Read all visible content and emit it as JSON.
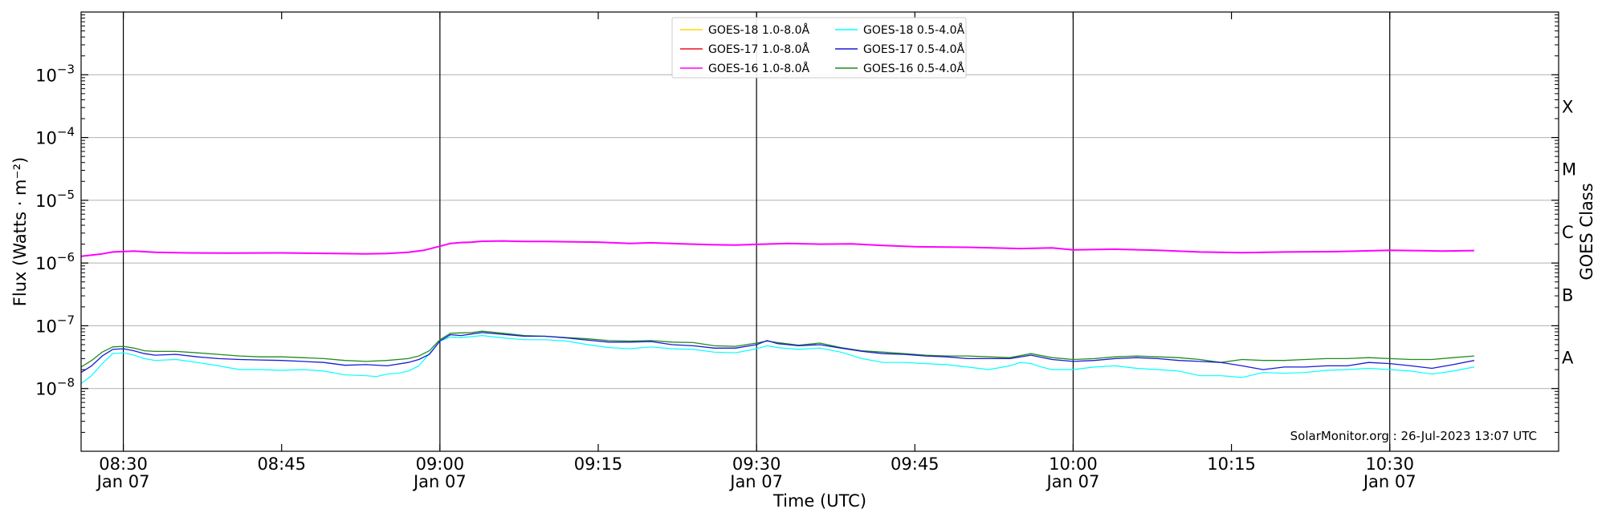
{
  "chart_data": {
    "type": "line",
    "title": "",
    "xlabel": "Time (UTC)",
    "ylabel": "Flux (Watts · m⁻²)",
    "ylabel_right": "GOES Class",
    "x_range": [
      "08:26",
      "10:46"
    ],
    "ylim": [
      1e-09,
      0.01
    ],
    "y_scale": "log",
    "grid": "horizontal",
    "legend_position": "top-center",
    "x_ticks": [
      {
        "t": 30,
        "label": "08:30",
        "date": "Jan 07"
      },
      {
        "t": 45,
        "label": "08:45",
        "date": ""
      },
      {
        "t": 60,
        "label": "09:00",
        "date": "Jan 07"
      },
      {
        "t": 75,
        "label": "09:15",
        "date": ""
      },
      {
        "t": 90,
        "label": "09:30",
        "date": "Jan 07"
      },
      {
        "t": 105,
        "label": "09:45",
        "date": ""
      },
      {
        "t": 120,
        "label": "10:00",
        "date": "Jan 07"
      },
      {
        "t": 135,
        "label": "10:15",
        "date": ""
      },
      {
        "t": 150,
        "label": "10:30",
        "date": "Jan 07"
      }
    ],
    "y_ticks": [
      {
        "value": 1e-08,
        "base": "10",
        "exp": "−8"
      },
      {
        "value": 1e-07,
        "base": "10",
        "exp": "−7"
      },
      {
        "value": 1e-06,
        "base": "10",
        "exp": "−6"
      },
      {
        "value": 1e-05,
        "base": "10",
        "exp": "−5"
      },
      {
        "value": 0.0001,
        "base": "10",
        "exp": "−4"
      },
      {
        "value": 0.001,
        "base": "10",
        "exp": "−3"
      }
    ],
    "goes_classes": [
      {
        "label": "A",
        "value": 3.16e-08
      },
      {
        "label": "B",
        "value": 3.16e-07
      },
      {
        "label": "C",
        "value": 3.16e-06
      },
      {
        "label": "M",
        "value": 3.16e-05
      },
      {
        "label": "X",
        "value": 0.000316
      }
    ],
    "vlines": [
      30,
      60,
      90,
      120,
      150
    ],
    "watermark": "SolarMonitor.org : 26-Jul-2023 13:07 UTC",
    "series": [
      {
        "name": "GOES-18 1.0-8.0Å",
        "color": "#ffd700",
        "width": 1.2,
        "x": [],
        "y": []
      },
      {
        "name": "GOES-17 1.0-8.0Å",
        "color": "#e8141e",
        "width": 1.2,
        "x": [],
        "y": []
      },
      {
        "name": "GOES-16 1.0-8.0Å",
        "color": "#ff00ff",
        "width": 2,
        "x": [
          26,
          28,
          29,
          31,
          33,
          36,
          40,
          45,
          50,
          53,
          55,
          57,
          58.5,
          60,
          61,
          62,
          63,
          64,
          66,
          68,
          70,
          72,
          75,
          78,
          80,
          83,
          86,
          88,
          90,
          93,
          96,
          99,
          102,
          105,
          110,
          115,
          118,
          120,
          124,
          128,
          132,
          136,
          140,
          145,
          150,
          155,
          158
        ],
        "y": [
          1.28e-06,
          1.4e-06,
          1.5e-06,
          1.55e-06,
          1.48e-06,
          1.45e-06,
          1.44e-06,
          1.45e-06,
          1.42e-06,
          1.4e-06,
          1.42e-06,
          1.48e-06,
          1.6e-06,
          1.85e-06,
          2.05e-06,
          2.12e-06,
          2.15e-06,
          2.22e-06,
          2.25e-06,
          2.2e-06,
          2.2e-06,
          2.18e-06,
          2.15e-06,
          2.05e-06,
          2.1e-06,
          2.02e-06,
          1.95e-06,
          1.93e-06,
          1.98e-06,
          2.05e-06,
          2e-06,
          2.02e-06,
          1.9e-06,
          1.82e-06,
          1.78e-06,
          1.7e-06,
          1.74e-06,
          1.62e-06,
          1.66e-06,
          1.6e-06,
          1.5e-06,
          1.46e-06,
          1.5e-06,
          1.52e-06,
          1.6e-06,
          1.55e-06,
          1.58e-06
        ]
      },
      {
        "name": "GOES-18 0.5-4.0Å",
        "color": "#00ffff",
        "width": 1.2,
        "x": [
          26,
          27,
          28,
          29,
          30,
          31,
          32,
          33,
          35,
          37,
          39,
          41,
          43,
          45,
          47,
          49,
          51,
          53,
          54,
          55,
          56,
          57,
          58,
          59,
          60,
          61,
          62,
          63,
          64,
          66,
          68,
          70,
          72,
          74,
          76,
          78,
          80,
          82,
          84,
          86,
          88,
          90,
          91,
          92,
          94,
          96,
          98,
          100,
          102,
          104,
          106,
          108,
          110,
          112,
          114,
          115,
          116,
          117,
          118,
          119,
          120,
          121,
          122,
          124,
          126,
          128,
          130,
          132,
          134,
          136,
          138,
          140,
          142,
          144,
          146,
          148,
          150,
          152,
          154,
          156,
          158
        ],
        "y": [
          1.2e-08,
          1.6e-08,
          2.5e-08,
          3.6e-08,
          3.7e-08,
          3.4e-08,
          3e-08,
          2.8e-08,
          2.9e-08,
          2.6e-08,
          2.3e-08,
          2e-08,
          2e-08,
          1.95e-08,
          2e-08,
          1.9e-08,
          1.65e-08,
          1.6e-08,
          1.55e-08,
          1.7e-08,
          1.75e-08,
          1.9e-08,
          2.3e-08,
          3.6e-08,
          5.7e-08,
          6.6e-08,
          6.5e-08,
          6.7e-08,
          7e-08,
          6.4e-08,
          6e-08,
          6e-08,
          5.7e-08,
          5e-08,
          4.5e-08,
          4.3e-08,
          4.6e-08,
          4.3e-08,
          4.2e-08,
          3.8e-08,
          3.7e-08,
          4.3e-08,
          4.8e-08,
          4.5e-08,
          4.2e-08,
          4.4e-08,
          3.8e-08,
          3e-08,
          2.6e-08,
          2.6e-08,
          2.5e-08,
          2.4e-08,
          2.2e-08,
          2e-08,
          2.3e-08,
          2.6e-08,
          2.5e-08,
          2.2e-08,
          2e-08,
          2e-08,
          2e-08,
          2.1e-08,
          2.2e-08,
          2.3e-08,
          2.1e-08,
          2e-08,
          1.9e-08,
          1.6e-08,
          1.6e-08,
          1.5e-08,
          1.8e-08,
          1.75e-08,
          1.8e-08,
          1.95e-08,
          2e-08,
          2.1e-08,
          2e-08,
          1.9e-08,
          1.7e-08,
          1.9e-08,
          2.2e-08
        ]
      },
      {
        "name": "GOES-17 0.5-4.0Å",
        "color": "#1a1ad6",
        "width": 1.3,
        "x": [
          26,
          27,
          28,
          29,
          30,
          31,
          32,
          33,
          35,
          37,
          39,
          41,
          43,
          45,
          47,
          49,
          51,
          53,
          55,
          57,
          58,
          59,
          60,
          61,
          62,
          63,
          64,
          66,
          68,
          70,
          72,
          74,
          76,
          78,
          80,
          82,
          84,
          86,
          88,
          90,
          91,
          92,
          94,
          96,
          98,
          100,
          102,
          104,
          106,
          108,
          110,
          112,
          114,
          116,
          118,
          120,
          122,
          124,
          126,
          128,
          130,
          132,
          134,
          136,
          138,
          140,
          142,
          144,
          146,
          148,
          150,
          152,
          154,
          156,
          158
        ],
        "y": [
          1.8e-08,
          2.3e-08,
          3.3e-08,
          4.2e-08,
          4.3e-08,
          4e-08,
          3.6e-08,
          3.4e-08,
          3.5e-08,
          3.2e-08,
          3e-08,
          2.9e-08,
          2.85e-08,
          2.8e-08,
          2.7e-08,
          2.6e-08,
          2.35e-08,
          2.4e-08,
          2.3e-08,
          2.6e-08,
          2.9e-08,
          3.5e-08,
          5.7e-08,
          7.2e-08,
          7e-08,
          7.4e-08,
          7.8e-08,
          7.3e-08,
          6.8e-08,
          6.8e-08,
          6.4e-08,
          5.9e-08,
          5.5e-08,
          5.5e-08,
          5.6e-08,
          5e-08,
          4.8e-08,
          4.4e-08,
          4.4e-08,
          5e-08,
          5.8e-08,
          5.2e-08,
          4.8e-08,
          5e-08,
          4.4e-08,
          3.9e-08,
          3.6e-08,
          3.5e-08,
          3.3e-08,
          3.2e-08,
          3e-08,
          3e-08,
          3e-08,
          3.4e-08,
          2.9e-08,
          2.7e-08,
          2.8e-08,
          3e-08,
          3.1e-08,
          3e-08,
          2.8e-08,
          2.7e-08,
          2.6e-08,
          2.3e-08,
          2e-08,
          2.2e-08,
          2.2e-08,
          2.3e-08,
          2.3e-08,
          2.6e-08,
          2.5e-08,
          2.3e-08,
          2.1e-08,
          2.4e-08,
          2.8e-08
        ]
      },
      {
        "name": "GOES-16 0.5-4.0Å",
        "color": "#1f8c1f",
        "width": 1.3,
        "x": [
          26,
          27,
          28,
          29,
          30,
          31,
          32,
          33,
          35,
          37,
          39,
          41,
          43,
          45,
          47,
          49,
          51,
          53,
          55,
          57,
          58,
          59,
          60,
          61,
          62,
          63,
          64,
          66,
          68,
          70,
          72,
          74,
          76,
          78,
          80,
          82,
          84,
          86,
          88,
          90,
          91,
          92,
          94,
          96,
          98,
          100,
          102,
          104,
          106,
          108,
          110,
          112,
          114,
          116,
          118,
          120,
          122,
          124,
          126,
          128,
          130,
          132,
          134,
          136,
          138,
          140,
          142,
          144,
          146,
          148,
          150,
          152,
          154,
          156,
          158
        ],
        "y": [
          2.2e-08,
          2.8e-08,
          3.8e-08,
          4.6e-08,
          4.7e-08,
          4.4e-08,
          4e-08,
          3.9e-08,
          3.9e-08,
          3.7e-08,
          3.5e-08,
          3.3e-08,
          3.2e-08,
          3.2e-08,
          3.1e-08,
          3e-08,
          2.8e-08,
          2.7e-08,
          2.8e-08,
          3e-08,
          3.3e-08,
          4e-08,
          6e-08,
          7.6e-08,
          7.7e-08,
          7.8e-08,
          8.2e-08,
          7.6e-08,
          7e-08,
          6.8e-08,
          6.5e-08,
          6.2e-08,
          5.8e-08,
          5.7e-08,
          5.8e-08,
          5.5e-08,
          5.4e-08,
          4.8e-08,
          4.7e-08,
          5.3e-08,
          5.7e-08,
          5.4e-08,
          4.9e-08,
          5.3e-08,
          4.5e-08,
          4e-08,
          3.8e-08,
          3.6e-08,
          3.4e-08,
          3.3e-08,
          3.3e-08,
          3.2e-08,
          3.1e-08,
          3.6e-08,
          3.1e-08,
          2.9e-08,
          3e-08,
          3.2e-08,
          3.3e-08,
          3.2e-08,
          3.1e-08,
          2.9e-08,
          2.6e-08,
          2.9e-08,
          2.8e-08,
          2.8e-08,
          2.9e-08,
          3e-08,
          3e-08,
          3.1e-08,
          3e-08,
          2.9e-08,
          2.9e-08,
          3.1e-08,
          3.3e-08
        ]
      }
    ]
  }
}
